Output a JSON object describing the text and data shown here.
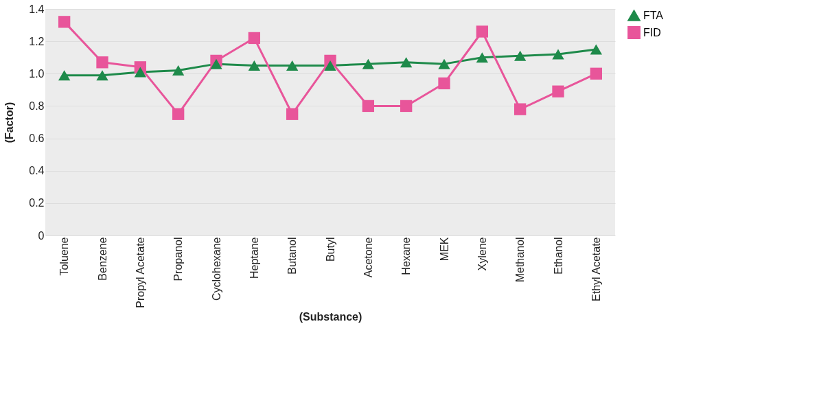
{
  "chart_data": {
    "type": "line",
    "xlabel": "(Substance)",
    "ylabel": "(Factor)",
    "categories": [
      "Toluene",
      "Benzene",
      "Propyl Acetate",
      "Propanol",
      "Cyclohexane",
      "Heptane",
      "Butanol",
      "Butyl",
      "Acetone",
      "Hexane",
      "MEK",
      "Xylene",
      "Methanol",
      "Ethanol",
      "Ethyl Acetate"
    ],
    "series": [
      {
        "name": "FTA",
        "color": "#1e8a4a",
        "marker": "triangle",
        "values": [
          0.99,
          0.99,
          1.01,
          1.02,
          1.06,
          1.05,
          1.05,
          1.05,
          1.06,
          1.07,
          1.06,
          1.1,
          1.11,
          1.12,
          1.15
        ]
      },
      {
        "name": "FID",
        "color": "#e8559a",
        "marker": "square",
        "values": [
          1.32,
          1.07,
          1.04,
          0.75,
          1.08,
          1.22,
          0.75,
          1.08,
          0.8,
          0.8,
          0.94,
          1.26,
          0.78,
          0.89,
          1.0
        ]
      }
    ],
    "ylim": [
      0,
      1.4
    ],
    "yticks": [
      0,
      0.2,
      0.4,
      0.6,
      0.8,
      {
        "value": 1,
        "label": "1.0"
      },
      1.2,
      1.4
    ],
    "grid": "y",
    "legend": "right",
    "line_style": "solid"
  }
}
